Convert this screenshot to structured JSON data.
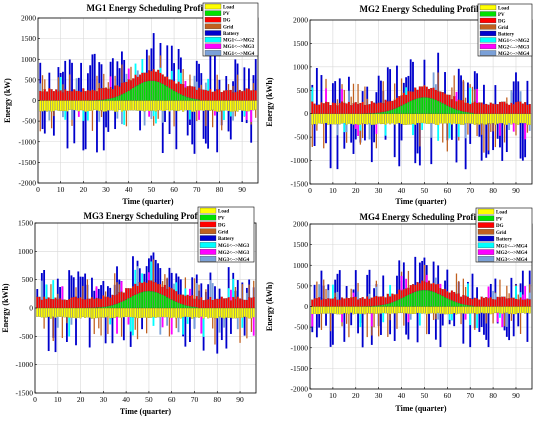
{
  "figure": {
    "panels": [
      {
        "title": "MG1 Energy Scheduling Profile",
        "ylabel": "Energy (kW)",
        "xlabel": "Time (quarter)",
        "yticks": [
          "2000",
          "1500",
          "1000",
          "500",
          "0",
          "-500",
          "-1000",
          "-1500",
          "-2000"
        ],
        "xticks": [
          "0",
          "10",
          "20",
          "30",
          "40",
          "50",
          "60",
          "70",
          "80",
          "90"
        ],
        "legend": [
          "Load",
          "PV",
          "DG",
          "Grid",
          "Battery",
          "MG1<-->MG2",
          "MG1<-->MG3",
          "MG1<-->MG4"
        ]
      },
      {
        "title": "MG2 Energy Scheduling Profile",
        "ylabel": "Energy (kWh)",
        "xlabel": "Time (quarter)",
        "yticks": [
          "2000",
          "1500",
          "1000",
          "500",
          "0",
          "-500",
          "-1000",
          "-1500"
        ],
        "xticks": [
          "0",
          "10",
          "20",
          "30",
          "40",
          "50",
          "60",
          "70",
          "80",
          "90"
        ],
        "legend": [
          "Load",
          "PV",
          "DG",
          "Grid",
          "Battery",
          "MG1<-->MG2",
          "MG2<-->MG3",
          "MG2<-->MG4"
        ]
      },
      {
        "title": "MG3 Energy Scheduling Profile",
        "ylabel": "Energy (kWh)",
        "xlabel": "Time (quarter)",
        "yticks": [
          "1500",
          "1000",
          "500",
          "0",
          "-500",
          "-1000",
          "-1500"
        ],
        "xticks": [
          "0",
          "10",
          "20",
          "30",
          "40",
          "50",
          "60",
          "70",
          "80",
          "90"
        ],
        "legend": [
          "Load",
          "PV",
          "DG",
          "Grid",
          "Battery",
          "MG1<-->MG3",
          "MG2<-->MG3",
          "MG3<-->MG4"
        ]
      },
      {
        "title": "MG4 Energy Scheduling Profile",
        "ylabel": "Energy (kWh)",
        "xlabel": "Time (quarter)",
        "yticks": [
          "2000",
          "1500",
          "1000",
          "500",
          "0",
          "-500",
          "-1000",
          "-1500",
          "-2000"
        ],
        "xticks": [
          "0",
          "10",
          "20",
          "30",
          "40",
          "50",
          "60",
          "70",
          "80",
          "90"
        ],
        "legend": [
          "Load",
          "PV",
          "DG",
          "Grid",
          "Battery",
          "MG1<-->MG4",
          "MG2<-->MG4",
          "MG3<-->MG4"
        ]
      }
    ]
  },
  "colors": {
    "Load": "#ffff00",
    "PV": "#00e000",
    "DG": "#ff0000",
    "Grid": "#c06020",
    "Battery": "#0000cc",
    "Ex1": "#00ffff",
    "Ex2": "#ff00ff",
    "Ex3": "#7aa0d8"
  },
  "chart_data": [
    {
      "type": "bar",
      "title": "MG1 Energy Scheduling Profile",
      "xlabel": "Time (quarter)",
      "ylabel": "Energy (kW)",
      "xlim": [
        0,
        96
      ],
      "ylim": [
        -2000,
        2000
      ],
      "grid": true,
      "legend_position": "top-right",
      "series": [
        {
          "name": "Load",
          "values": "approx. -250 for every quarter (stacked below 0)"
        },
        {
          "name": "PV",
          "values": [
            0,
            0,
            0,
            0,
            0,
            0,
            0,
            0,
            0,
            0,
            0,
            0,
            0,
            0,
            0,
            0,
            0,
            0,
            0,
            0,
            0,
            0,
            0,
            0,
            10,
            30,
            60,
            90,
            120,
            150,
            180,
            210,
            240,
            270,
            300,
            330,
            360,
            390,
            410,
            430,
            450,
            460,
            470,
            480,
            490,
            500,
            500,
            500,
            495,
            490,
            480,
            470,
            460,
            450,
            430,
            410,
            390,
            370,
            350,
            320,
            290,
            260,
            230,
            200,
            170,
            140,
            110,
            80,
            50,
            25,
            10,
            0,
            0,
            0,
            0,
            0,
            0,
            0,
            0,
            0,
            0,
            0,
            0,
            0,
            0,
            0,
            0,
            0,
            0,
            0,
            0,
            0,
            0,
            0,
            0,
            0
          ]
        },
        {
          "name": "DG",
          "values": "approx. 250 per quarter stacked above PV"
        },
        {
          "name": "Grid",
          "values": "random spikes between -1000 and 900"
        },
        {
          "name": "Battery",
          "values": "random spikes between -1200 and 1700"
        },
        {
          "name": "MG1<-->MG2",
          "values": "small exchanges"
        },
        {
          "name": "MG1<-->MG3",
          "values": "small exchanges"
        },
        {
          "name": "MG1<-->MG4",
          "values": "small exchanges"
        }
      ]
    },
    {
      "type": "bar",
      "title": "MG2 Energy Scheduling Profile",
      "xlabel": "Time (quarter)",
      "ylabel": "Energy (kWh)",
      "xlim": [
        0,
        96
      ],
      "ylim": [
        -1500,
        2000
      ],
      "grid": true,
      "legend_position": "top-right",
      "series": [
        {
          "name": "Load",
          "values": "approx. -200 for every quarter"
        },
        {
          "name": "PV",
          "values": "bell shape peaking near 350 at quarter 50"
        },
        {
          "name": "DG",
          "values": "approx. 250 per quarter"
        },
        {
          "name": "Grid",
          "values": "random spikes between -1150 and 1400"
        },
        {
          "name": "Battery",
          "values": "random spikes between -1200 and 1600"
        },
        {
          "name": "MG1<-->MG2",
          "values": "small exchanges"
        },
        {
          "name": "MG2<-->MG3",
          "values": "small exchanges"
        },
        {
          "name": "MG2<-->MG4",
          "values": "small exchanges"
        }
      ]
    },
    {
      "type": "bar",
      "title": "MG3 Energy Scheduling Profile",
      "xlabel": "Time (quarter)",
      "ylabel": "Energy (kWh)",
      "xlim": [
        0,
        96
      ],
      "ylim": [
        -1500,
        1500
      ],
      "grid": true,
      "legend_position": "top-right",
      "series": [
        {
          "name": "Load",
          "values": "approx. -150 for every quarter"
        },
        {
          "name": "PV",
          "values": "bell shape peaking near 300 at quarter 50"
        },
        {
          "name": "DG",
          "values": "approx. 150 per quarter"
        },
        {
          "name": "Grid",
          "values": "random spikes between -1100 and 800"
        },
        {
          "name": "Battery",
          "values": "random spikes between -900 and 1000"
        },
        {
          "name": "MG1<-->MG3",
          "values": "small exchanges"
        },
        {
          "name": "MG2<-->MG3",
          "values": "small exchanges"
        },
        {
          "name": "MG3<-->MG4",
          "values": "small exchanges"
        }
      ]
    },
    {
      "type": "bar",
      "title": "MG4 Energy Scheduling Profile",
      "xlabel": "Time (quarter)",
      "ylabel": "Energy (kWh)",
      "xlim": [
        0,
        96
      ],
      "ylim": [
        -2000,
        2000
      ],
      "grid": true,
      "legend_position": "top-right",
      "series": [
        {
          "name": "Load",
          "values": "approx. -150 for every quarter"
        },
        {
          "name": "PV",
          "values": "bell shape peaking near 400 at quarter 50"
        },
        {
          "name": "DG",
          "values": "approx. 200 per quarter"
        },
        {
          "name": "Grid",
          "values": "random spikes between -1300 and 1000"
        },
        {
          "name": "Battery",
          "values": "random spikes between -1300 and 1400"
        },
        {
          "name": "MG1<-->MG4",
          "values": "small exchanges"
        },
        {
          "name": "MG2<-->MG4",
          "values": "small exchanges"
        },
        {
          "name": "MG3<-->MG4",
          "values": "small exchanges"
        }
      ]
    }
  ]
}
